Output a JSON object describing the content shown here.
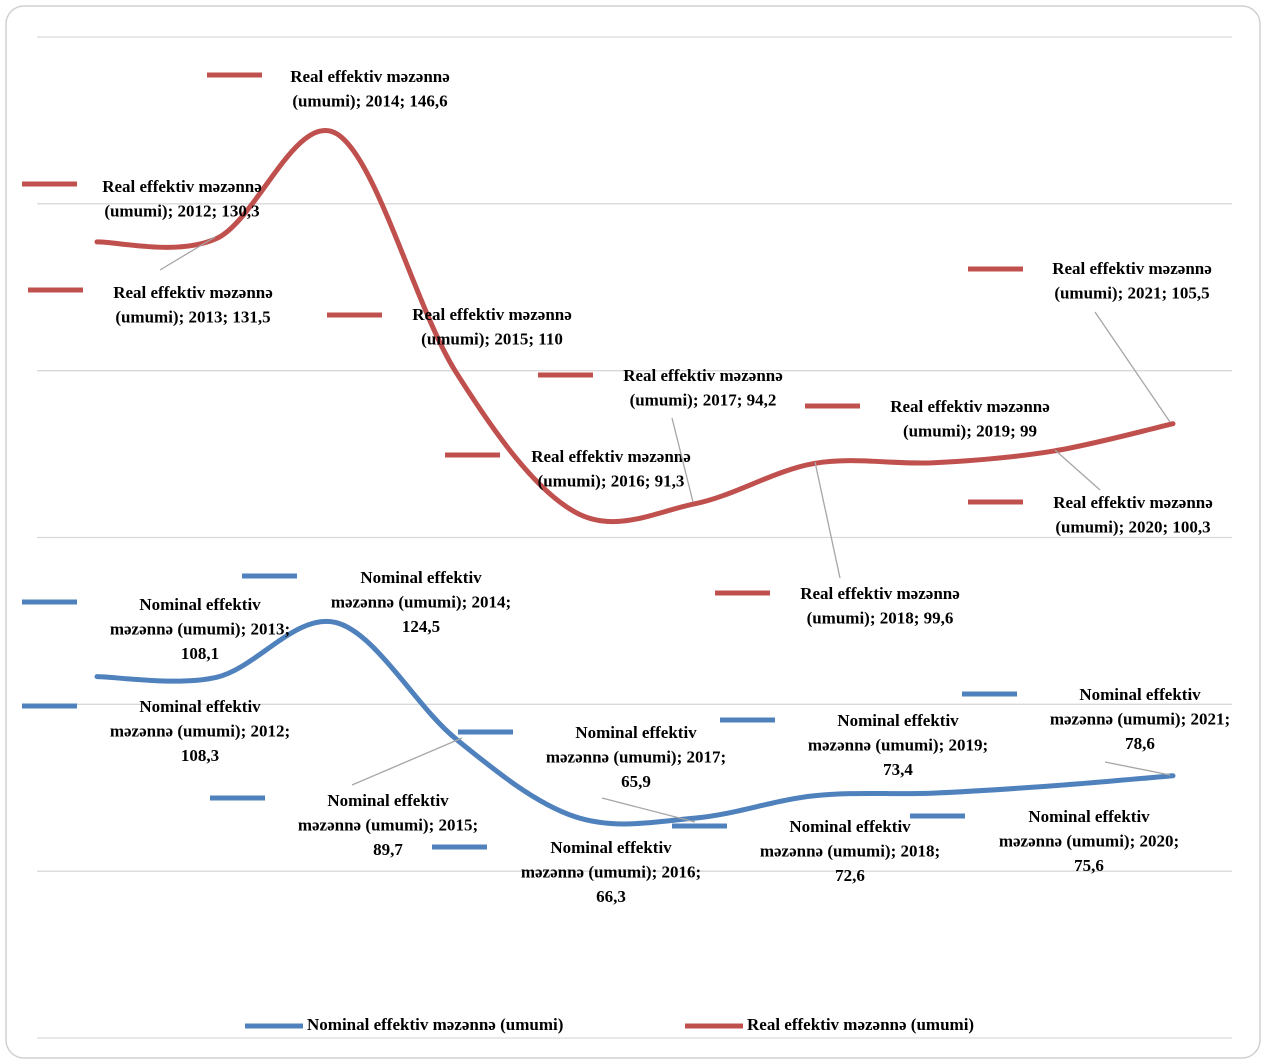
{
  "chart_data": {
    "type": "line",
    "stacked": true,
    "categories": [
      "2012",
      "2013",
      "2014",
      "2015",
      "2016",
      "2017",
      "2018",
      "2019",
      "2020",
      "2021"
    ],
    "ylim": [
      0,
      300
    ],
    "yticks": [
      0,
      50,
      100,
      150,
      200,
      250,
      300
    ],
    "grid": true,
    "legend": "bottom",
    "series": [
      {
        "name": "Nominal effektiv məzənnə (umumi)",
        "color": "#4f81bd",
        "values": [
          108.3,
          108.1,
          124.5,
          89.7,
          66.3,
          65.9,
          72.6,
          73.4,
          75.6,
          78.6
        ],
        "value_labels": [
          [
            "Nominal effektiv",
            "məzənnə (umumi); 2012;",
            "108,3"
          ],
          [
            "Nominal effektiv",
            "məzənnə (umumi); 2013;",
            "108,1"
          ],
          [
            "Nominal effektiv",
            "məzənnə (umumi); 2014;",
            "124,5"
          ],
          [
            "Nominal effektiv",
            "məzənnə (umumi); 2015;",
            "89,7"
          ],
          [
            "Nominal effektiv",
            "məzənnə (umumi); 2016;",
            "66,3"
          ],
          [
            "Nominal effektiv",
            "məzənnə (umumi); 2017;",
            "65,9"
          ],
          [
            "Nominal effektiv",
            "məzənnə (umumi); 2018;",
            "72,6"
          ],
          [
            "Nominal effektiv",
            "məzənnə (umumi); 2019;",
            "73,4"
          ],
          [
            "Nominal effektiv",
            "məzənnə (umumi); 2020;",
            "75,6"
          ],
          [
            "Nominal effektiv",
            "məzənnə (umumi); 2021;",
            "78,6"
          ]
        ]
      },
      {
        "name": "Real effektiv məzənnə  (umumi)",
        "color": "#c0504d",
        "values": [
          130.3,
          131.5,
          146.6,
          110,
          91.3,
          94.2,
          99.6,
          99,
          100.3,
          105.5
        ],
        "value_labels": [
          [
            "Real effektiv məzənnə",
            "(umumi); 2012; 130,3"
          ],
          [
            "Real effektiv məzənnə",
            "(umumi); 2013; 131,5"
          ],
          [
            "Real effektiv məzənnə",
            "(umumi); 2014; 146,6"
          ],
          [
            "Real effektiv məzənnə",
            "(umumi); 2015; 110"
          ],
          [
            "Real effektiv məzənnə",
            "(umumi); 2016; 91,3"
          ],
          [
            "Real effektiv məzənnə",
            "(umumi); 2017; 94,2"
          ],
          [
            "Real effektiv məzənnə",
            "(umumi); 2018; 99,6"
          ],
          [
            "Real effektiv məzənnə",
            "(umumi); 2019; 99"
          ],
          [
            "Real effektiv məzənnə",
            "(umumi); 2020; 100,3"
          ],
          [
            "Real effektiv məzənnə",
            "(umumi); 2021; 105,5"
          ]
        ]
      }
    ]
  }
}
